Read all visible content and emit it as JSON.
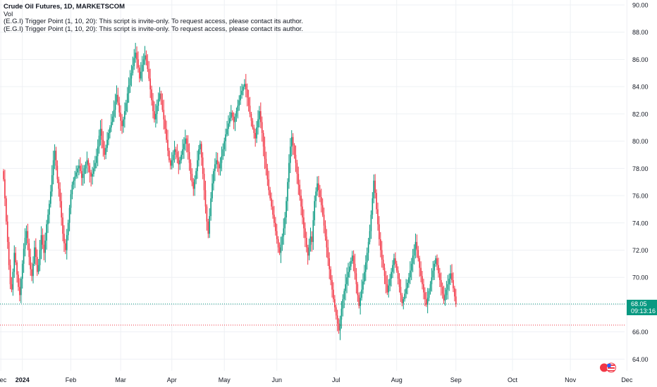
{
  "chart_data": {
    "type": "candlestick",
    "title": "Crude Oil Futures, 1D, MARKETSCOM",
    "indicators": [
      "Vol",
      "(E.G.I) Trigger Point  (1, 10, 20): This script is invite-only. To request access, please contact its author.",
      "(E.G.I) Trigger Point  (1, 10, 20): This script is invite-only. To request access, please contact its author."
    ],
    "y_axis": {
      "min": 63.5,
      "max": 90.0,
      "ticks": [
        "64.00",
        "66.00",
        "68.00",
        "70.00",
        "72.00",
        "74.00",
        "76.00",
        "78.00",
        "80.00",
        "82.00",
        "84.00",
        "86.00",
        "88.00",
        "90.00"
      ]
    },
    "x_axis": {
      "labels": [
        "Dec",
        "2024",
        "Feb",
        "Mar",
        "Apr",
        "May",
        "Jun",
        "Jul",
        "Aug",
        "Sep",
        "Oct",
        "Nov",
        "Dec"
      ],
      "label_bar_index": [
        -2,
        14,
        50,
        87,
        125,
        164,
        203,
        247,
        292,
        336,
        378,
        421,
        463
      ]
    },
    "current_price": "68.05",
    "countdown": "09:13:16",
    "horizontal_lines": [
      {
        "price": 68.05,
        "color": "#089981",
        "style": "dotted"
      },
      {
        "price": 66.5,
        "color": "#f23645",
        "style": "dotted"
      }
    ],
    "colors": {
      "up": "#089981",
      "down": "#f23645",
      "grid": "#eef0f4"
    },
    "closes": [
      77.2,
      75.8,
      74.1,
      72.6,
      70.9,
      69.5,
      69.1,
      70.4,
      71.8,
      71.1,
      70.2,
      69.3,
      68.7,
      69.9,
      71.0,
      72.1,
      72.9,
      73.4,
      72.5,
      71.5,
      70.6,
      70.1,
      71.0,
      72.2,
      71.5,
      70.4,
      70.9,
      72.0,
      73.1,
      72.4,
      71.8,
      72.7,
      73.9,
      74.6,
      75.4,
      76.3,
      77.5,
      78.6,
      79.3,
      78.2,
      77.2,
      76.5,
      75.6,
      74.4,
      73.2,
      72.5,
      72.0,
      73.1,
      74.0,
      75.1,
      76.1,
      76.8,
      77.1,
      77.4,
      77.7,
      78.0,
      78.2,
      77.8,
      77.3,
      77.6,
      78.0,
      78.3,
      78.6,
      78.2,
      77.7,
      77.4,
      77.6,
      78.0,
      78.4,
      78.9,
      79.6,
      80.4,
      80.9,
      80.1,
      79.5,
      79.0,
      79.5,
      80.1,
      80.6,
      81.0,
      81.4,
      81.8,
      82.3,
      82.9,
      83.4,
      82.8,
      82.1,
      81.5,
      81.1,
      81.6,
      82.2,
      82.8,
      83.5,
      84.1,
      84.6,
      85.0,
      85.5,
      86.1,
      86.5,
      86.0,
      85.4,
      84.6,
      85.1,
      85.6,
      86.0,
      86.3,
      85.9,
      85.3,
      84.6,
      83.8,
      83.0,
      82.2,
      81.6,
      82.0,
      82.6,
      83.1,
      83.5,
      83.0,
      82.3,
      81.6,
      80.9,
      80.1,
      79.3,
      78.6,
      78.2,
      78.6,
      79.0,
      79.4,
      79.2,
      78.8,
      78.3,
      78.6,
      79.0,
      79.4,
      79.8,
      80.2,
      79.8,
      79.2,
      78.4,
      77.6,
      77.0,
      76.5,
      77.2,
      77.8,
      78.6,
      79.4,
      79.8,
      78.8,
      77.6,
      76.4,
      75.2,
      74.1,
      73.2,
      74.5,
      75.8,
      76.9,
      77.8,
      78.3,
      78.6,
      78.3,
      78.0,
      78.4,
      78.9,
      79.4,
      80.0,
      80.5,
      80.9,
      81.3,
      81.7,
      82.1,
      81.8,
      81.4,
      81.8,
      82.2,
      82.6,
      83.0,
      83.4,
      83.7,
      84.0,
      84.2,
      83.8,
      83.2,
      82.6,
      82.0,
      81.5,
      81.0,
      80.6,
      80.2,
      81.0,
      81.6,
      82.2,
      81.4,
      80.6,
      79.6,
      78.7,
      78.0,
      77.2,
      76.4,
      75.8,
      75.2,
      74.6,
      74.0,
      73.4,
      72.8,
      72.2,
      71.8,
      72.4,
      73.0,
      73.6,
      74.4,
      75.6,
      77.0,
      78.4,
      79.6,
      80.3,
      79.7,
      79.0,
      78.4,
      77.6,
      76.8,
      76.0,
      75.2,
      74.4,
      73.6,
      72.9,
      72.2,
      71.6,
      72.4,
      73.0,
      72.6,
      74.2,
      75.6,
      76.3,
      76.9,
      76.4,
      75.9,
      75.3,
      74.6,
      73.8,
      73.0,
      72.2,
      71.4,
      70.6,
      69.8,
      69.1,
      68.4,
      67.8,
      67.2,
      66.6,
      66.1,
      66.9,
      67.7,
      68.4,
      69.0,
      69.5,
      70.0,
      70.4,
      70.8,
      71.2,
      71.6,
      71.0,
      70.3,
      69.5,
      68.7,
      67.9,
      68.5,
      69.1,
      69.7,
      70.4,
      71.1,
      71.8,
      72.6,
      73.4,
      74.6,
      75.8,
      77.1,
      76.2,
      75.0,
      73.9,
      72.8,
      72.0,
      71.3,
      70.7,
      70.1,
      69.5,
      68.9,
      69.4,
      69.9,
      70.4,
      70.9,
      71.4,
      71.0,
      70.5,
      69.9,
      69.3,
      68.7,
      68.1,
      68.4,
      68.8,
      69.2,
      69.6,
      70.0,
      70.5,
      71.0,
      71.6,
      72.1,
      72.6,
      72.0,
      71.4,
      70.7,
      70.1,
      69.5,
      68.9,
      68.4,
      68.0,
      68.5,
      69.0,
      69.5,
      70.0,
      70.5,
      71.0,
      71.4,
      70.9,
      70.3,
      69.8,
      69.3,
      68.8,
      68.3,
      68.7,
      69.1,
      69.5,
      69.9,
      70.3,
      69.8,
      69.2,
      68.6,
      68.05
    ]
  }
}
